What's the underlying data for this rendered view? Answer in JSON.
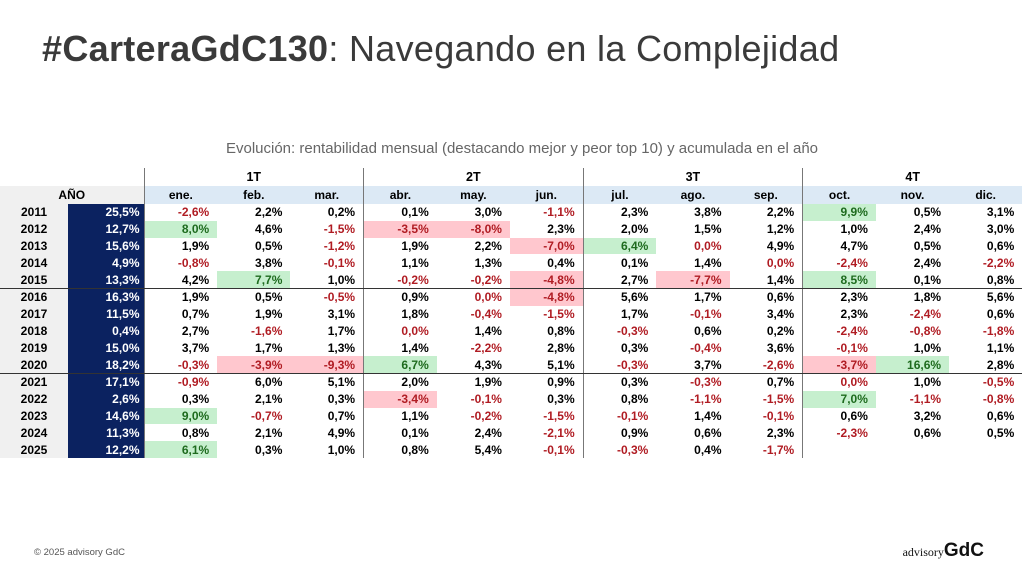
{
  "title": {
    "bold": "#CarteraGdC130",
    "rest": ": Navegando en la Complejidad"
  },
  "subtitle": "Evolución: rentabilidad mensual (destacando mejor y peor top 10) y acumulada en el año",
  "table": {
    "quarters": [
      "1T",
      "2T",
      "3T",
      "4T"
    ],
    "year_header": "AÑO",
    "months": [
      "ene.",
      "feb.",
      "mar.",
      "abr.",
      "may.",
      "jun.",
      "jul.",
      "ago.",
      "sep.",
      "oct.",
      "nov.",
      "dic."
    ],
    "rows": [
      {
        "year": "2011",
        "total": "25,5%",
        "m": [
          "-2,6%",
          "2,2%",
          "0,2%",
          "0,1%",
          "3,0%",
          "-1,1%",
          "2,3%",
          "3,8%",
          "2,2%",
          "9,9%",
          "0,5%",
          "3,1%"
        ],
        "hl": {
          "9": "g"
        }
      },
      {
        "year": "2012",
        "total": "12,7%",
        "m": [
          "8,0%",
          "4,6%",
          "-1,5%",
          "-3,5%",
          "-8,0%",
          "2,3%",
          "2,0%",
          "1,5%",
          "1,2%",
          "1,0%",
          "2,4%",
          "3,0%"
        ],
        "hl": {
          "0": "g",
          "3": "r",
          "4": "r"
        }
      },
      {
        "year": "2013",
        "total": "15,6%",
        "m": [
          "1,9%",
          "0,5%",
          "-1,2%",
          "1,9%",
          "2,2%",
          "-7,0%",
          "6,4%",
          "0,0%",
          "4,9%",
          "4,7%",
          "0,5%",
          "0,6%"
        ],
        "hl": {
          "5": "r",
          "6": "g"
        }
      },
      {
        "year": "2014",
        "total": "4,9%",
        "m": [
          "-0,8%",
          "3,8%",
          "-0,1%",
          "1,1%",
          "1,3%",
          "0,4%",
          "0,1%",
          "1,4%",
          "0,0%",
          "-2,4%",
          "2,4%",
          "-2,2%"
        ],
        "hl": {}
      },
      {
        "year": "2015",
        "total": "13,3%",
        "m": [
          "4,2%",
          "7,7%",
          "1,0%",
          "-0,2%",
          "-0,2%",
          "-4,8%",
          "2,7%",
          "-7,7%",
          "1,4%",
          "8,5%",
          "0,1%",
          "0,8%"
        ],
        "hl": {
          "1": "g",
          "5": "r",
          "7": "r",
          "9": "g"
        }
      },
      {
        "year": "2016",
        "total": "16,3%",
        "m": [
          "1,9%",
          "0,5%",
          "-0,5%",
          "0,9%",
          "0,0%",
          "-4,8%",
          "5,6%",
          "1,7%",
          "0,6%",
          "2,3%",
          "1,8%",
          "5,6%"
        ],
        "hl": {
          "5": "r"
        }
      },
      {
        "year": "2017",
        "total": "11,5%",
        "m": [
          "0,7%",
          "1,9%",
          "3,1%",
          "1,8%",
          "-0,4%",
          "-1,5%",
          "1,7%",
          "-0,1%",
          "3,4%",
          "2,3%",
          "-2,4%",
          "0,6%"
        ],
        "hl": {}
      },
      {
        "year": "2018",
        "total": "0,4%",
        "m": [
          "2,7%",
          "-1,6%",
          "1,7%",
          "0,0%",
          "1,4%",
          "0,8%",
          "-0,3%",
          "0,6%",
          "0,2%",
          "-2,4%",
          "-0,8%",
          "-1,8%"
        ],
        "hl": {}
      },
      {
        "year": "2019",
        "total": "15,0%",
        "m": [
          "3,7%",
          "1,7%",
          "1,3%",
          "1,4%",
          "-2,2%",
          "2,8%",
          "0,3%",
          "-0,4%",
          "3,6%",
          "-0,1%",
          "1,0%",
          "1,1%"
        ],
        "hl": {}
      },
      {
        "year": "2020",
        "total": "18,2%",
        "m": [
          "-0,3%",
          "-3,9%",
          "-9,3%",
          "6,7%",
          "4,3%",
          "5,1%",
          "-0,3%",
          "3,7%",
          "-2,6%",
          "-3,7%",
          "16,6%",
          "2,8%"
        ],
        "hl": {
          "1": "r",
          "2": "r",
          "3": "g",
          "9": "r",
          "10": "g"
        }
      },
      {
        "year": "2021",
        "total": "17,1%",
        "m": [
          "-0,9%",
          "6,0%",
          "5,1%",
          "2,0%",
          "1,9%",
          "0,9%",
          "0,3%",
          "-0,3%",
          "0,7%",
          "0,0%",
          "1,0%",
          "-0,5%"
        ],
        "hl": {}
      },
      {
        "year": "2022",
        "total": "2,6%",
        "m": [
          "0,3%",
          "2,1%",
          "0,3%",
          "-3,4%",
          "-0,1%",
          "0,3%",
          "0,8%",
          "-1,1%",
          "-1,5%",
          "7,0%",
          "-1,1%",
          "-0,8%"
        ],
        "hl": {
          "3": "r",
          "9": "g"
        }
      },
      {
        "year": "2023",
        "total": "14,6%",
        "m": [
          "9,0%",
          "-0,7%",
          "0,7%",
          "1,1%",
          "-0,2%",
          "-1,5%",
          "-0,1%",
          "1,4%",
          "-0,1%",
          "0,6%",
          "3,2%",
          "0,6%"
        ],
        "hl": {
          "0": "g"
        }
      },
      {
        "year": "2024",
        "total": "11,3%",
        "m": [
          "0,8%",
          "2,1%",
          "4,9%",
          "0,1%",
          "2,4%",
          "-2,1%",
          "0,9%",
          "0,6%",
          "2,3%",
          "-2,3%",
          "0,6%",
          "0,5%"
        ],
        "hl": {}
      },
      {
        "year": "2025",
        "total": "12,2%",
        "m": [
          "6,1%",
          "0,3%",
          "1,0%",
          "0,8%",
          "5,4%",
          "-0,1%",
          "-0,3%",
          "0,4%",
          "-1,7%",
          "",
          "",
          ""
        ],
        "hl": {
          "0": "g"
        }
      }
    ]
  },
  "footer": "© 2025 advisory GdC",
  "logo": {
    "small": "advisory",
    "big": "GdC"
  }
}
